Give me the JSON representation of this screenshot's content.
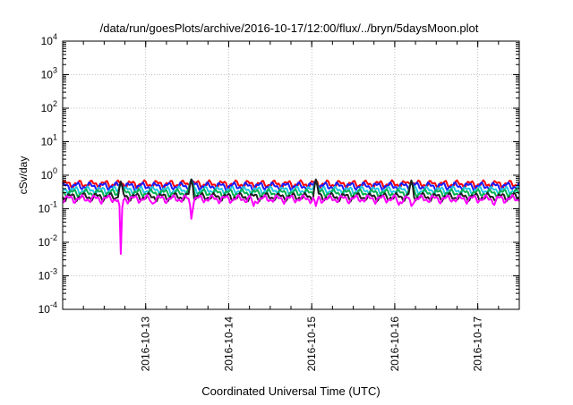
{
  "chart_data": {
    "type": "line",
    "title": "/data/run/goesPlots/archive/2016-10-17/12:00/flux/../bryn/5daysMoon.plot",
    "xlabel": "Coordinated Universal Time (UTC)",
    "ylabel": "cSv/day",
    "yscale": "log",
    "ylim": [
      0.0001,
      10000
    ],
    "xlim": [
      "2016-10-12 00:00",
      "2016-10-17 12:00"
    ],
    "y_ticks": [
      {
        "value": 0.0001,
        "base": "10",
        "exp": "-4"
      },
      {
        "value": 0.001,
        "base": "10",
        "exp": "-3"
      },
      {
        "value": 0.01,
        "base": "10",
        "exp": "-2"
      },
      {
        "value": 0.1,
        "base": "10",
        "exp": "-1"
      },
      {
        "value": 1,
        "base": "10",
        "exp": "0"
      },
      {
        "value": 10,
        "base": "10",
        "exp": "1"
      },
      {
        "value": 100,
        "base": "10",
        "exp": "2"
      },
      {
        "value": 1000,
        "base": "10",
        "exp": "3"
      },
      {
        "value": 10000,
        "base": "10",
        "exp": "4"
      }
    ],
    "x_ticks": [
      "2016-10-13",
      "2016-10-14",
      "2016-10-15",
      "2016-10-16",
      "2016-10-17"
    ],
    "grid": true,
    "legend": "none",
    "series": [
      {
        "color": "#ff0000",
        "base": 0.55,
        "dips": [
          [
            0.7,
            0.6
          ],
          [
            1.55,
            0.75
          ],
          [
            3.05,
            0.7
          ],
          [
            4.2,
            0.65
          ]
        ]
      },
      {
        "color": "#1a1aff",
        "base": 0.48,
        "dips": [
          [
            0.7,
            0.6
          ],
          [
            1.55,
            0.75
          ],
          [
            3.05,
            0.7
          ],
          [
            4.2,
            0.65
          ]
        ]
      },
      {
        "color": "#1ec8e6",
        "base": 0.36,
        "dips": [
          [
            0.7,
            0.62
          ],
          [
            1.55,
            0.75
          ],
          [
            3.05,
            0.72
          ],
          [
            4.2,
            0.65
          ]
        ]
      },
      {
        "color": "#00b050",
        "base": 0.3,
        "dips": [
          [
            0.7,
            0.62
          ],
          [
            1.55,
            0.75
          ],
          [
            3.05,
            0.72
          ],
          [
            4.2,
            0.65
          ]
        ]
      },
      {
        "color": "#202020",
        "base": 0.23,
        "dips": [
          [
            0.7,
            0.65
          ],
          [
            1.55,
            0.75
          ],
          [
            3.05,
            0.75
          ],
          [
            4.2,
            0.7
          ]
        ]
      },
      {
        "color": "#ff00ff",
        "base": 0.2,
        "dips": [
          [
            0.7,
            0.0045
          ],
          [
            1.08,
            0.14
          ],
          [
            1.55,
            0.05
          ],
          [
            2.3,
            0.12
          ],
          [
            3.05,
            0.12
          ],
          [
            4.05,
            0.13
          ],
          [
            4.2,
            0.12
          ],
          [
            5.2,
            0.13
          ]
        ]
      }
    ]
  }
}
